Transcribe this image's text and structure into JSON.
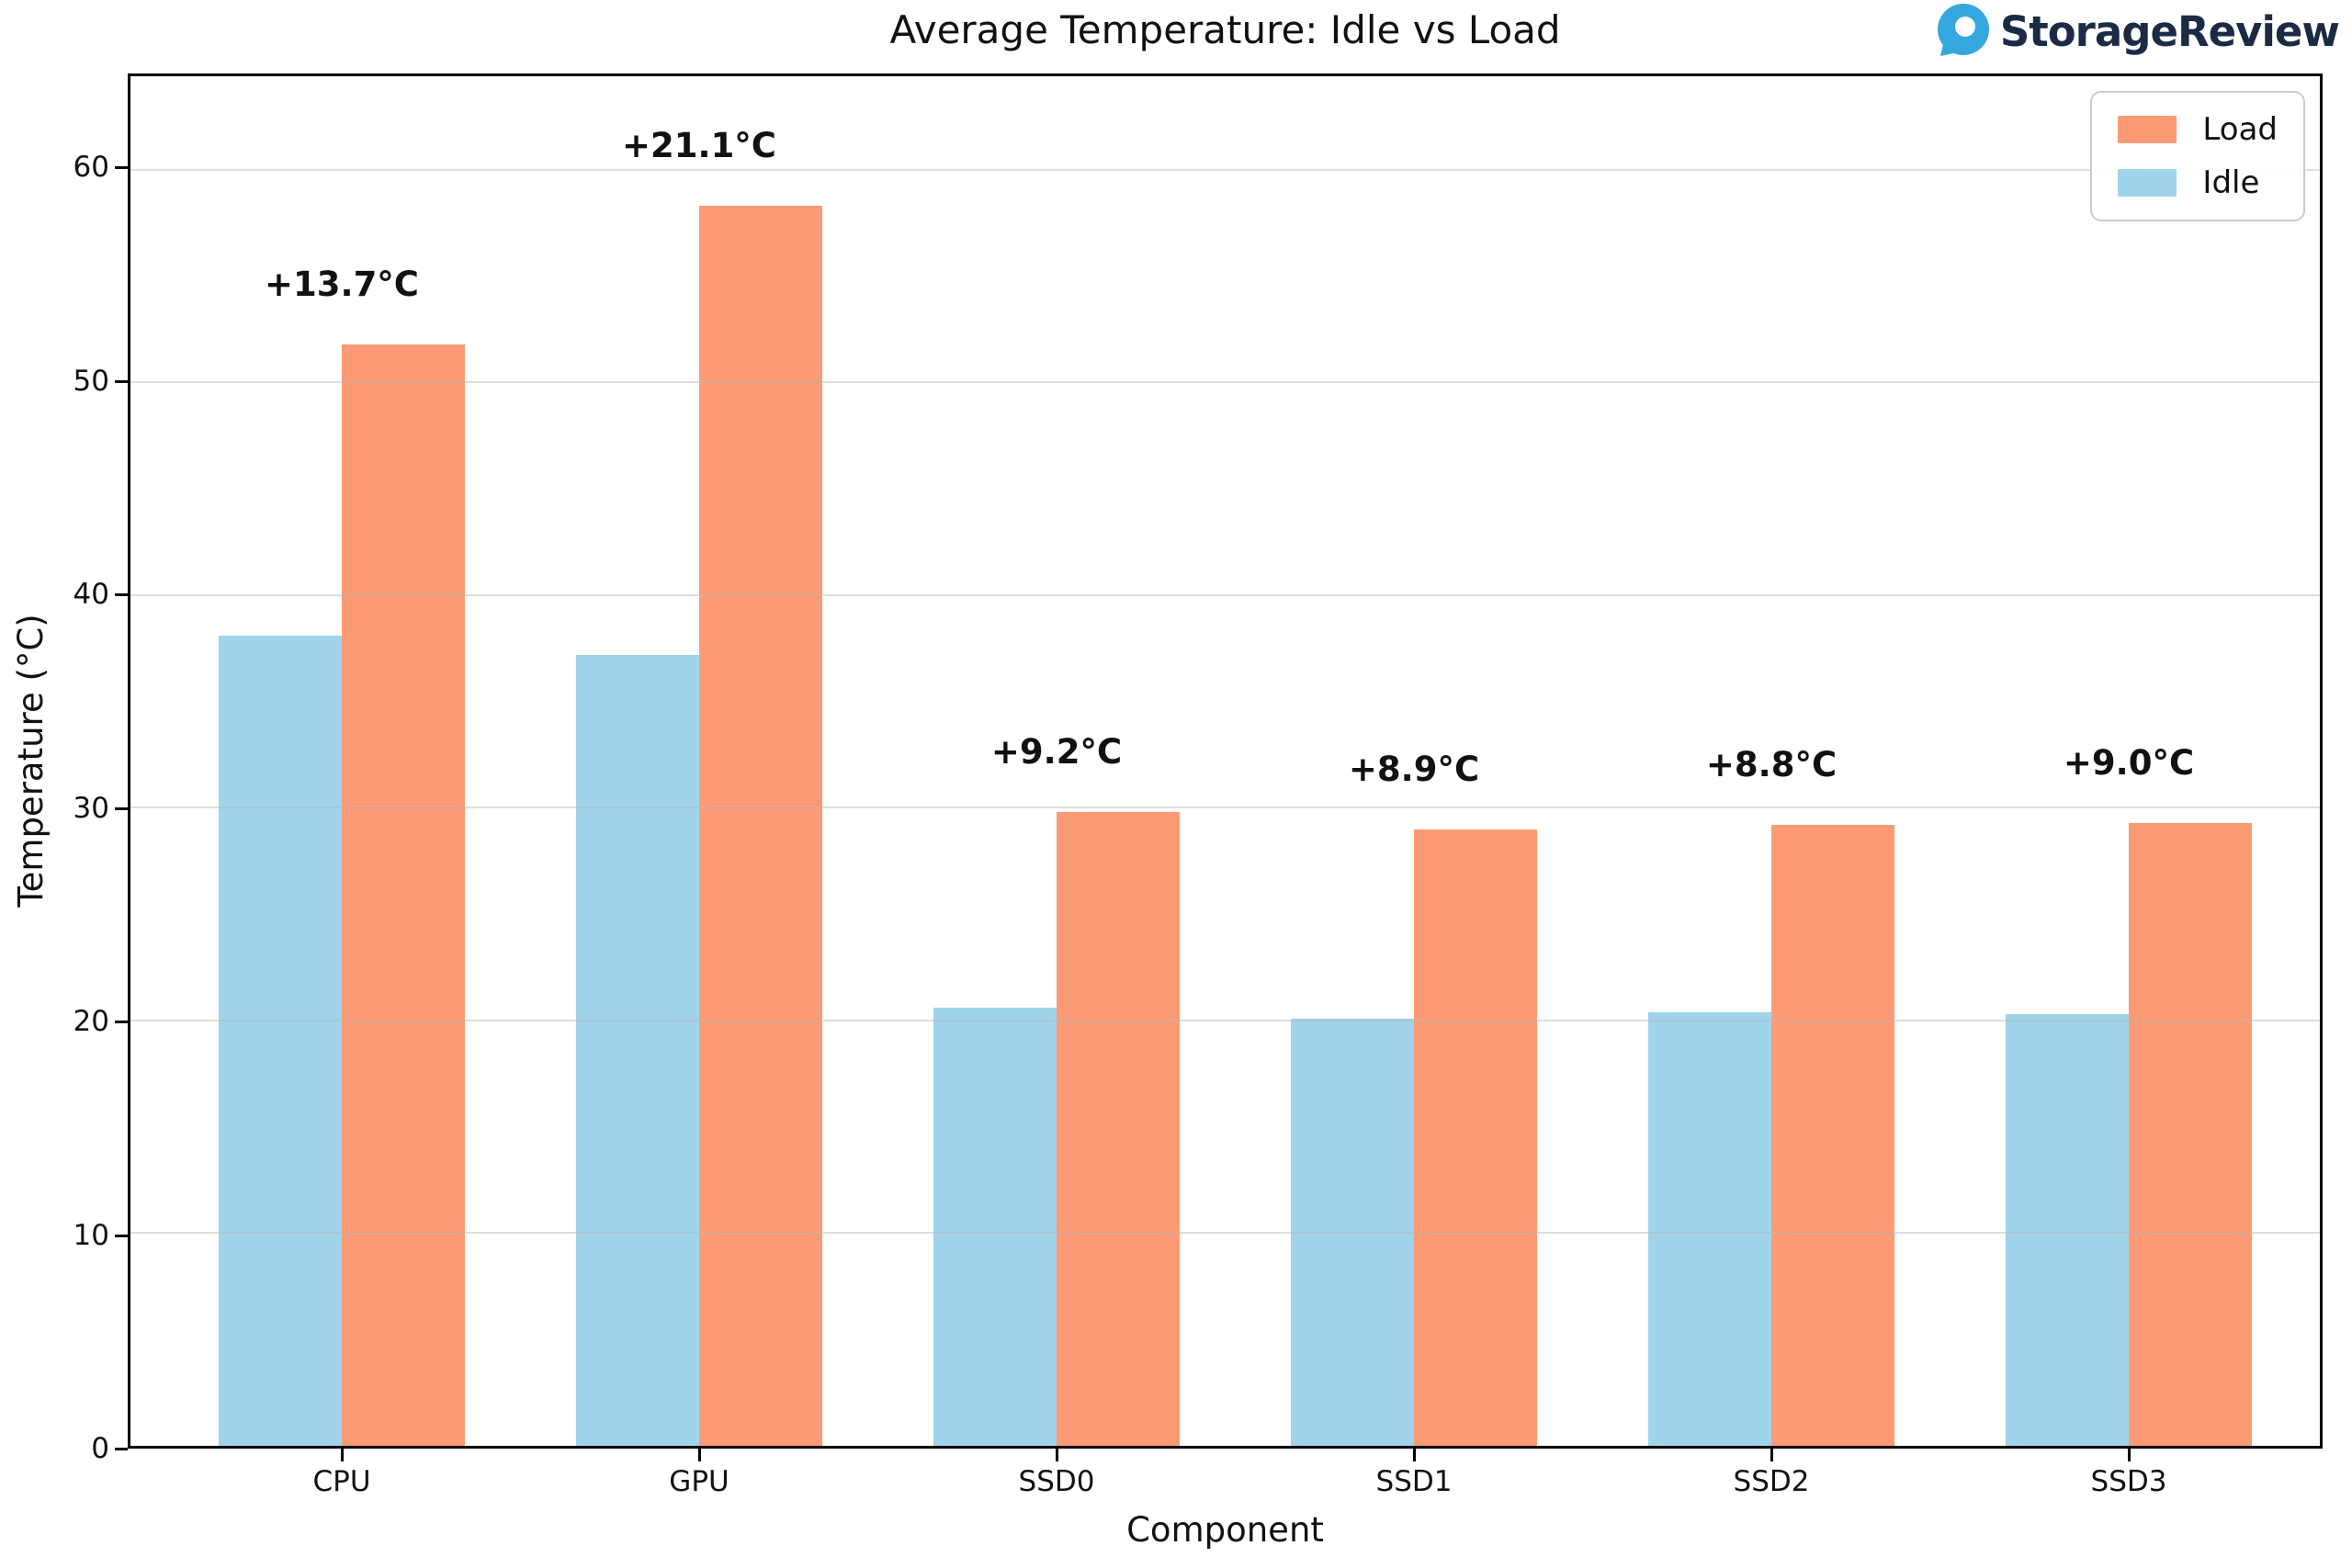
{
  "branding": {
    "name": "StorageReview",
    "icon": "storagereview-logo-icon",
    "icon_color": "#35A8E0",
    "text_color": "#1B2B45"
  },
  "chart_data": {
    "type": "bar",
    "title": "Average Temperature: Idle vs Load",
    "xlabel": "Component",
    "ylabel": "Temperature (°C)",
    "categories": [
      "CPU",
      "GPU",
      "SSD0",
      "SSD1",
      "SSD2",
      "SSD3"
    ],
    "series": [
      {
        "name": "Idle",
        "color": "#9FD4EA",
        "values": [
          38.1,
          37.2,
          20.6,
          20.1,
          20.4,
          20.3
        ]
      },
      {
        "name": "Load",
        "color": "#FC9A75",
        "values": [
          51.8,
          58.3,
          29.8,
          29.0,
          29.2,
          29.3
        ]
      }
    ],
    "annotations": [
      "+13.7°C",
      "+21.1°C",
      "+9.2°C",
      "+8.9°C",
      "+8.8°C",
      "+9.0°C"
    ],
    "yticks": [
      0,
      10,
      20,
      30,
      40,
      50,
      60
    ],
    "ylim": [
      0,
      64.4
    ],
    "grid": true,
    "legend": {
      "position": "upper-right",
      "entries": [
        "Load",
        "Idle"
      ]
    }
  }
}
